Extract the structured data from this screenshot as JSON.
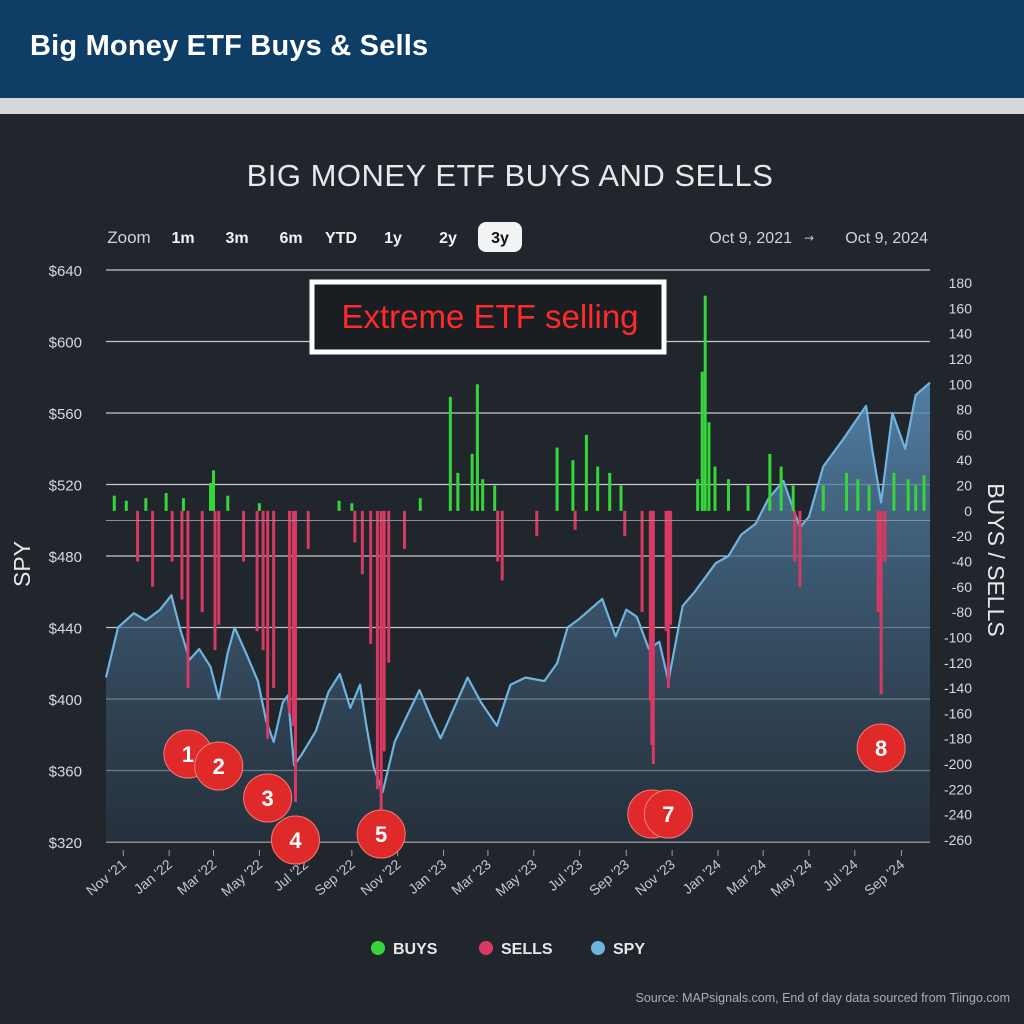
{
  "header": {
    "title": "Big Money ETF Buys & Sells"
  },
  "colors": {
    "buys": "#35d63a",
    "sells": "#d63a63",
    "spy": "#6fb3df",
    "annotation": "#e02a2a",
    "header_bg": "#0e3e66",
    "plot_bg": "#20262c"
  },
  "zoom": {
    "label": "Zoom",
    "buttons": [
      "1m",
      "3m",
      "6m",
      "YTD",
      "1y",
      "2y",
      "3y"
    ],
    "active": "3y"
  },
  "range": {
    "from": "Oct 9, 2021",
    "arrow": "→",
    "to": "Oct 9, 2024"
  },
  "callout": {
    "text": "Extreme ETF selling"
  },
  "legend": {
    "items": [
      "BUYS",
      "SELLS",
      "SPY"
    ]
  },
  "source": "Source: MAPsignals.com, End of day data sourced from Tiingo.com",
  "chart_data": {
    "type": "area",
    "title": "BIG MONEY ETF BUYS AND SELLS",
    "ylabel": "SPY",
    "y2label": "BUYS / SELLS",
    "ylim": [
      320,
      640
    ],
    "y2lim": [
      -260,
      180
    ],
    "grid": true,
    "legend_position": "bottom-center",
    "yticks": [
      "$320",
      "$360",
      "$400",
      "$440",
      "$480",
      "$520",
      "$560",
      "$600",
      "$640"
    ],
    "y2ticks": [
      "-260",
      "-240",
      "-220",
      "-200",
      "-180",
      "-160",
      "-140",
      "-120",
      "-100",
      "-80",
      "-60",
      "-40",
      "-20",
      "0",
      "20",
      "40",
      "60",
      "80",
      "100",
      "120",
      "140",
      "160",
      "180"
    ],
    "xticks": [
      "Nov '21",
      "Jan '22",
      "Mar '22",
      "May '22",
      "Jul '22",
      "Sep '22",
      "Nov '22",
      "Jan '23",
      "Mar '23",
      "May '23",
      "Jul '23",
      "Sep '23",
      "Nov '23",
      "Jan '24",
      "Mar '24",
      "May '24",
      "Jul '24",
      "Sep '24"
    ],
    "x_range": [
      "2021-10-09",
      "2024-10-09"
    ],
    "series": [
      {
        "name": "SPY",
        "kind": "area",
        "points": [
          [
            "2021-10-09",
            412
          ],
          [
            "2021-10-25",
            440
          ],
          [
            "2021-11-15",
            448
          ],
          [
            "2021-12-01",
            444
          ],
          [
            "2021-12-20",
            450
          ],
          [
            "2022-01-04",
            458
          ],
          [
            "2022-01-15",
            440
          ],
          [
            "2022-01-28",
            422
          ],
          [
            "2022-02-10",
            428
          ],
          [
            "2022-02-25",
            418
          ],
          [
            "2022-03-08",
            400
          ],
          [
            "2022-03-20",
            426
          ],
          [
            "2022-03-29",
            440
          ],
          [
            "2022-04-15",
            424
          ],
          [
            "2022-04-29",
            410
          ],
          [
            "2022-05-10",
            388
          ],
          [
            "2022-05-20",
            376
          ],
          [
            "2022-06-01",
            398
          ],
          [
            "2022-06-08",
            402
          ],
          [
            "2022-06-16",
            363
          ],
          [
            "2022-06-25",
            368
          ],
          [
            "2022-07-15",
            382
          ],
          [
            "2022-08-01",
            404
          ],
          [
            "2022-08-16",
            414
          ],
          [
            "2022-08-30",
            395
          ],
          [
            "2022-09-12",
            408
          ],
          [
            "2022-09-20",
            386
          ],
          [
            "2022-09-30",
            362
          ],
          [
            "2022-10-12",
            348
          ],
          [
            "2022-10-28",
            376
          ],
          [
            "2022-11-15",
            392
          ],
          [
            "2022-11-30",
            405
          ],
          [
            "2022-12-15",
            390
          ],
          [
            "2022-12-28",
            378
          ],
          [
            "2023-01-15",
            395
          ],
          [
            "2023-02-02",
            412
          ],
          [
            "2023-02-20",
            398
          ],
          [
            "2023-03-13",
            385
          ],
          [
            "2023-03-31",
            408
          ],
          [
            "2023-04-20",
            412
          ],
          [
            "2023-05-15",
            410
          ],
          [
            "2023-06-01",
            420
          ],
          [
            "2023-06-15",
            440
          ],
          [
            "2023-07-01",
            445
          ],
          [
            "2023-07-31",
            456
          ],
          [
            "2023-08-18",
            435
          ],
          [
            "2023-09-01",
            450
          ],
          [
            "2023-09-15",
            446
          ],
          [
            "2023-10-01",
            428
          ],
          [
            "2023-10-15",
            432
          ],
          [
            "2023-10-27",
            410
          ],
          [
            "2023-11-15",
            452
          ],
          [
            "2023-12-01",
            460
          ],
          [
            "2023-12-29",
            476
          ],
          [
            "2024-01-15",
            480
          ],
          [
            "2024-02-01",
            492
          ],
          [
            "2024-02-20",
            498
          ],
          [
            "2024-03-08",
            512
          ],
          [
            "2024-03-28",
            522
          ],
          [
            "2024-04-19",
            496
          ],
          [
            "2024-05-01",
            502
          ],
          [
            "2024-05-20",
            530
          ],
          [
            "2024-06-15",
            545
          ],
          [
            "2024-07-16",
            564
          ],
          [
            "2024-07-24",
            540
          ],
          [
            "2024-08-05",
            510
          ],
          [
            "2024-08-20",
            560
          ],
          [
            "2024-09-06",
            540
          ],
          [
            "2024-09-20",
            570
          ],
          [
            "2024-10-09",
            577
          ]
        ]
      },
      {
        "name": "BUYS",
        "kind": "bar",
        "points": [
          [
            "2021-10-20",
            12
          ],
          [
            "2021-11-05",
            8
          ],
          [
            "2021-12-01",
            10
          ],
          [
            "2021-12-28",
            14
          ],
          [
            "2022-01-20",
            10
          ],
          [
            "2022-02-25",
            22
          ],
          [
            "2022-03-01",
            32
          ],
          [
            "2022-03-20",
            12
          ],
          [
            "2022-05-01",
            6
          ],
          [
            "2022-08-15",
            8
          ],
          [
            "2022-09-01",
            6
          ],
          [
            "2022-12-01",
            10
          ],
          [
            "2023-01-10",
            90
          ],
          [
            "2023-01-20",
            30
          ],
          [
            "2023-02-08",
            45
          ],
          [
            "2023-02-15",
            100
          ],
          [
            "2023-02-22",
            25
          ],
          [
            "2023-03-10",
            20
          ],
          [
            "2023-06-01",
            50
          ],
          [
            "2023-06-22",
            40
          ],
          [
            "2023-07-10",
            60
          ],
          [
            "2023-07-25",
            35
          ],
          [
            "2023-08-10",
            30
          ],
          [
            "2023-08-25",
            20
          ],
          [
            "2023-12-05",
            25
          ],
          [
            "2023-12-11",
            110
          ],
          [
            "2023-12-15",
            170
          ],
          [
            "2023-12-20",
            70
          ],
          [
            "2023-12-28",
            35
          ],
          [
            "2024-01-15",
            25
          ],
          [
            "2024-02-10",
            20
          ],
          [
            "2024-03-10",
            45
          ],
          [
            "2024-03-25",
            35
          ],
          [
            "2024-04-10",
            20
          ],
          [
            "2024-05-20",
            20
          ],
          [
            "2024-06-20",
            30
          ],
          [
            "2024-07-05",
            25
          ],
          [
            "2024-07-20",
            20
          ],
          [
            "2024-08-22",
            30
          ],
          [
            "2024-09-10",
            25
          ],
          [
            "2024-09-20",
            20
          ],
          [
            "2024-10-01",
            28
          ]
        ]
      },
      {
        "name": "SELLS",
        "kind": "bar",
        "points": [
          [
            "2021-11-20",
            -40
          ],
          [
            "2021-12-10",
            -60
          ],
          [
            "2022-01-05",
            -40
          ],
          [
            "2022-01-18",
            -70
          ],
          [
            "2022-01-26",
            -140
          ],
          [
            "2022-02-14",
            -80
          ],
          [
            "2022-03-03",
            -110
          ],
          [
            "2022-03-08",
            -90
          ],
          [
            "2022-04-10",
            -40
          ],
          [
            "2022-04-28",
            -95
          ],
          [
            "2022-05-06",
            -110
          ],
          [
            "2022-05-12",
            -180
          ],
          [
            "2022-05-20",
            -140
          ],
          [
            "2022-06-10",
            -160
          ],
          [
            "2022-06-15",
            -170
          ],
          [
            "2022-06-18",
            -230
          ],
          [
            "2022-07-05",
            -30
          ],
          [
            "2022-09-05",
            -25
          ],
          [
            "2022-09-15",
            -50
          ],
          [
            "2022-09-26",
            -105
          ],
          [
            "2022-10-05",
            -220
          ],
          [
            "2022-10-10",
            -250
          ],
          [
            "2022-10-14",
            -190
          ],
          [
            "2022-10-20",
            -120
          ],
          [
            "2022-11-10",
            -30
          ],
          [
            "2023-03-14",
            -40
          ],
          [
            "2023-03-20",
            -55
          ],
          [
            "2023-05-05",
            -20
          ],
          [
            "2023-06-25",
            -15
          ],
          [
            "2023-08-30",
            -20
          ],
          [
            "2023-09-22",
            -80
          ],
          [
            "2023-10-03",
            -150
          ],
          [
            "2023-10-05",
            -185
          ],
          [
            "2023-10-07",
            -200
          ],
          [
            "2023-10-24",
            -95
          ],
          [
            "2023-10-27",
            -140
          ],
          [
            "2023-10-30",
            -90
          ],
          [
            "2024-04-12",
            -40
          ],
          [
            "2024-04-19",
            -60
          ],
          [
            "2024-08-01",
            -80
          ],
          [
            "2024-08-05",
            -145
          ],
          [
            "2024-08-10",
            -40
          ]
        ]
      }
    ],
    "annotations": [
      {
        "label": "1",
        "date": "2022-01-26"
      },
      {
        "label": "2",
        "date": "2022-03-08"
      },
      {
        "label": "3",
        "date": "2022-05-12"
      },
      {
        "label": "4",
        "date": "2022-06-18"
      },
      {
        "label": "5",
        "date": "2022-10-10"
      },
      {
        "label": "6",
        "date": "2023-10-05"
      },
      {
        "label": "7",
        "date": "2023-10-27"
      },
      {
        "label": "8",
        "date": "2024-08-05"
      }
    ]
  }
}
